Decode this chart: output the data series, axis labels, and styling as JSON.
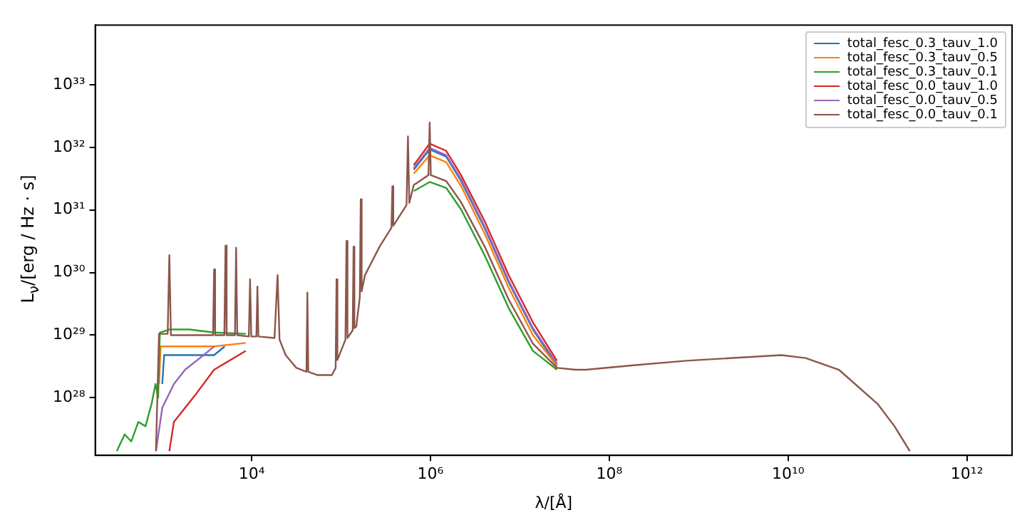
{
  "chart_data": {
    "type": "line",
    "xlabel": "λ/[Å]",
    "ylabel": "L$_{ν}$/[erg / Hz · s]",
    "log": "xy",
    "grid": false,
    "legend": "top right",
    "xlim": [
      178,
      3200000000000
    ],
    "ylim": [
      1.2e+27,
      9e+33
    ],
    "xticks": [
      {
        "value": 10000,
        "label": "10⁴"
      },
      {
        "value": 1000000,
        "label": "10⁶"
      },
      {
        "value": 100000000,
        "label": "10⁸"
      },
      {
        "value": 10000000000,
        "label": "10¹⁰"
      },
      {
        "value": 1000000000000,
        "label": "10¹²"
      }
    ],
    "yticks": [
      {
        "value": 1e+28,
        "label": "10²⁸"
      },
      {
        "value": 1e+29,
        "label": "10²⁹"
      },
      {
        "value": 1e+30,
        "label": "10³⁰"
      },
      {
        "value": 1e+31,
        "label": "10³¹"
      },
      {
        "value": 1e+32,
        "label": "10³²"
      },
      {
        "value": 1e+33,
        "label": "10³³"
      }
    ],
    "series": [
      {
        "name": "total_fesc_0.3_tauv_1.0",
        "color": "#1f77b4",
        "x": [
          1000,
          1050,
          3800,
          5000,
          18000,
          24000,
          31600,
          55000,
          79000,
          115000,
          148000,
          185000,
          270000,
          390000,
          560000,
          650000,
          980000,
          1500000,
          2200000,
          4100000,
          7500000,
          14000000,
          26000000
        ],
        "values": [
          1.66e+28,
          4.8e+28,
          4.8e+28,
          6.6e+28,
          null,
          null,
          null,
          null,
          null,
          null,
          null,
          null,
          null,
          null,
          null,
          4.4e+31,
          9.3e+31,
          7.1e+31,
          2.9e+31,
          4.9e+30,
          7e+29,
          1.23e+29,
          3.3e+28
        ]
      },
      {
        "name": "total_fesc_0.3_tauv_0.5",
        "color": "#ff7f0e",
        "x": [
          920,
          960,
          3800,
          8600,
          18000,
          24000,
          31600,
          55000,
          79000,
          115000,
          148000,
          185000,
          270000,
          390000,
          560000,
          650000,
          980000,
          1500000,
          2200000,
          4100000,
          7500000,
          14000000,
          26000000
        ],
        "values": [
          1.66e+28,
          6.6e+28,
          6.6e+28,
          7.5e+28,
          null,
          null,
          null,
          null,
          null,
          null,
          null,
          null,
          null,
          null,
          null,
          3.8e+31,
          7.5e+31,
          5.8e+31,
          2.4e+31,
          4e+30,
          5.7e+29,
          1e+29,
          3.2e+28
        ]
      },
      {
        "name": "total_fesc_0.3_tauv_0.1",
        "color": "#2ca02c",
        "x": [
          310,
          380,
          450,
          540,
          650,
          760,
          840,
          900,
          940,
          1200,
          2000,
          3800,
          8600,
          18000,
          24000,
          31600,
          55000,
          79000,
          115000,
          148000,
          185000,
          270000,
          390000,
          560000,
          650000,
          980000,
          1500000,
          2200000,
          4100000,
          7500000,
          14000000,
          26000000
        ],
        "values": [
          1.4e+27,
          2.6e+27,
          2e+27,
          4.1e+27,
          3.5e+27,
          8e+27,
          1.66e+28,
          1e+28,
          1.1e+29,
          1.23e+29,
          1.23e+29,
          1.1e+29,
          1.05e+29,
          null,
          null,
          null,
          null,
          null,
          null,
          null,
          null,
          null,
          null,
          null,
          2e+31,
          2.8e+31,
          2.25e+31,
          1.02e+31,
          1.8e+30,
          2.7e+29,
          5.6e+28,
          2.8e+28
        ]
      },
      {
        "name": "total_fesc_0.0_tauv_1.0",
        "color": "#d62728",
        "x": [
          1200,
          1350,
          1800,
          2400,
          3800,
          8600,
          18000,
          24000,
          31600,
          55000,
          79000,
          115000,
          148000,
          185000,
          270000,
          390000,
          560000,
          650000,
          980000,
          1500000,
          2200000,
          4100000,
          7500000,
          14000000,
          26000000
        ],
        "values": [
          1.4e+27,
          4.1e+27,
          6.9e+27,
          1.16e+28,
          2.8e+28,
          5.6e+28,
          null,
          null,
          null,
          null,
          null,
          null,
          null,
          null,
          null,
          null,
          null,
          5.2e+31,
          1.15e+32,
          8.8e+31,
          3.6e+31,
          6.3e+30,
          9.1e+29,
          1.6e+29,
          3.9e+28
        ]
      },
      {
        "name": "total_fesc_0.0_tauv_0.5",
        "color": "#9467bd",
        "x": [
          850,
          1000,
          1350,
          1800,
          2900,
          3800,
          18000,
          24000,
          31600,
          55000,
          79000,
          115000,
          148000,
          185000,
          270000,
          390000,
          560000,
          650000,
          980000,
          1500000,
          2200000,
          4100000,
          7500000,
          14000000,
          26000000
        ],
        "values": [
          1.4e+27,
          6.9e+27,
          1.66e+28,
          2.8e+28,
          4.8e+28,
          6.6e+28,
          null,
          null,
          null,
          null,
          null,
          null,
          null,
          null,
          null,
          null,
          null,
          4.7e+31,
          9.8e+31,
          7.5e+31,
          3.1e+31,
          5.2e+30,
          7.4e+29,
          1.3e+29,
          3.5e+28
        ]
      },
      {
        "name": "total_fesc_0.0_tauv_0.1",
        "color": "#8c564b",
        "x": [
          850,
          920,
          1150,
          1200,
          1250,
          3700,
          3800,
          3900,
          4950,
          5100,
          5250,
          6500,
          6700,
          6900,
          9300,
          9600,
          9900,
          11300,
          11600,
          11900,
          18000,
          19500,
          20500,
          24000,
          31600,
          41000,
          42000,
          43000,
          55000,
          79000,
          87000,
          89000,
          91000,
          112000,
          115000,
          118000,
          135000,
          138000,
          141000,
          148000,
          162000,
          166000,
          170000,
          185000,
          270000,
          366000,
          375000,
          384000,
          540000,
          560000,
          580000,
          650000,
          950000,
          980000,
          1010000,
          1500000,
          2200000,
          4100000,
          7500000,
          14000000,
          26000000,
          42000000,
          55000000,
          187000000,
          730000000,
          8400000000,
          15700000000,
          37000000000,
          100000000000,
          155000000000,
          230000000000
        ],
        "values": [
          1.4e+27,
          1.05e+29,
          1.05e+29,
          1.9e+30,
          1e+29,
          1e+29,
          1.12e+30,
          1e+29,
          1e+29,
          2.7e+30,
          1e+29,
          1e+29,
          2.5e+30,
          1e+29,
          9.5e+28,
          7.8e+29,
          9.5e+28,
          9.5e+28,
          6e+29,
          9.5e+28,
          9e+28,
          9.1e+29,
          8.5e+28,
          4.8e+28,
          3e+28,
          2.6e+28,
          4.8e+29,
          2.6e+28,
          2.3e+28,
          2.3e+28,
          3e+28,
          7.8e+29,
          4e+28,
          8.5e+28,
          3.2e+30,
          9e+28,
          1.2e+29,
          2.6e+30,
          1.3e+29,
          1.37e+29,
          4e+29,
          1.48e+31,
          5e+29,
          9.1e+29,
          2.6e+30,
          5.2e+30,
          2.4e+31,
          5.6e+30,
          1.2e+31,
          1.5e+32,
          1.3e+31,
          2.5e+31,
          3.6e+31,
          2.5e+32,
          3.6e+31,
          2.9e+31,
          1.33e+31,
          2.5e+30,
          3.7e+29,
          7.3e+28,
          3e+28,
          2.8e+28,
          2.8e+28,
          3.3e+28,
          3.9e+28,
          4.8e+28,
          4.3e+28,
          2.8e+28,
          8e+27,
          3.5e+27,
          1.4e+27
        ]
      }
    ]
  }
}
